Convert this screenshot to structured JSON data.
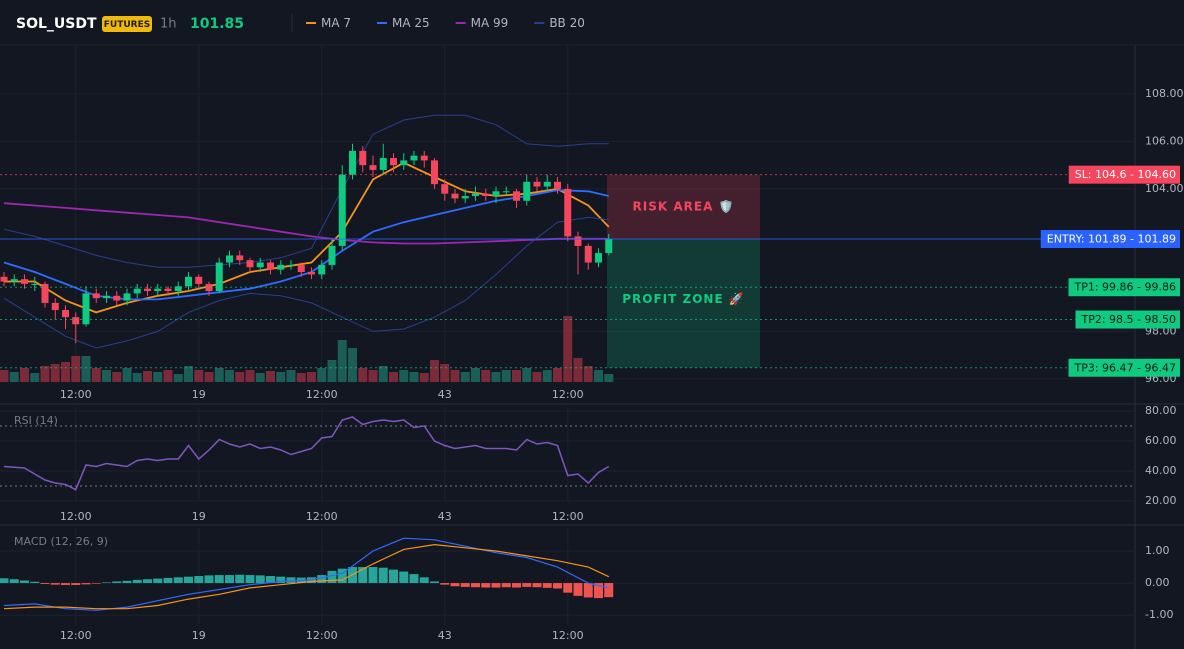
{
  "chart_data": [
    {
      "type": "candlestick",
      "title": "SOL_USDT",
      "badge": "FUTURES",
      "interval": "1h",
      "last_price": 101.85,
      "x": [
        0,
        1,
        2,
        3,
        4,
        5,
        6,
        7,
        8,
        9,
        10,
        11,
        12,
        13,
        14,
        15,
        16,
        17,
        18,
        19,
        20,
        21,
        22,
        23,
        24,
        25,
        26,
        27,
        28,
        29,
        30,
        31,
        32,
        33,
        34,
        35,
        36,
        37,
        38,
        39,
        40,
        41,
        42,
        43,
        44,
        45,
        46,
        47,
        48,
        49,
        50,
        51,
        52,
        53,
        54,
        55,
        56,
        57,
        58,
        59
      ],
      "open": [
        100.3,
        100.1,
        100.2,
        100.0,
        100.0,
        99.2,
        98.9,
        98.6,
        98.3,
        99.6,
        99.4,
        99.5,
        99.3,
        99.6,
        99.8,
        99.7,
        99.8,
        99.7,
        99.9,
        100.3,
        100.0,
        99.7,
        100.9,
        101.2,
        101.0,
        100.7,
        100.9,
        100.6,
        100.8,
        100.8,
        100.5,
        100.4,
        100.8,
        101.6,
        104.6,
        105.6,
        105.0,
        104.8,
        105.3,
        105.0,
        105.2,
        105.4,
        105.2,
        104.2,
        103.8,
        103.6,
        103.7,
        103.8,
        103.7,
        103.9,
        103.9,
        103.5,
        104.3,
        104.1,
        104.3,
        104.0,
        102.0,
        101.6,
        100.9,
        101.3
      ],
      "high": [
        100.5,
        100.4,
        100.4,
        100.3,
        100.1,
        99.4,
        99.1,
        98.8,
        99.9,
        99.8,
        99.7,
        99.7,
        99.8,
        100.0,
        100.0,
        100.0,
        99.9,
        100.1,
        100.5,
        100.4,
        100.1,
        101.1,
        101.4,
        101.4,
        101.1,
        101.1,
        101.0,
        101.0,
        101.0,
        100.9,
        100.7,
        101.0,
        101.9,
        105.0,
        105.9,
        105.8,
        105.4,
        105.9,
        105.5,
        105.5,
        105.6,
        105.6,
        105.3,
        104.4,
        104.0,
        104.0,
        104.1,
        104.0,
        104.1,
        104.1,
        104.0,
        104.6,
        104.5,
        104.6,
        104.5,
        104.2,
        102.2,
        101.7,
        101.5,
        102.1
      ],
      "low": [
        99.9,
        99.9,
        99.8,
        99.7,
        99.0,
        98.5,
        98.1,
        97.5,
        98.2,
        99.2,
        99.2,
        99.1,
        99.1,
        99.4,
        99.5,
        99.5,
        99.5,
        99.5,
        99.7,
        99.8,
        99.5,
        99.6,
        100.7,
        100.8,
        100.5,
        100.5,
        100.4,
        100.4,
        100.6,
        100.3,
        100.2,
        100.2,
        100.6,
        101.4,
        104.4,
        104.7,
        104.5,
        104.6,
        104.7,
        104.8,
        105.0,
        104.9,
        104.0,
        103.5,
        103.4,
        103.4,
        103.5,
        103.5,
        103.4,
        103.7,
        103.2,
        103.3,
        103.9,
        103.9,
        103.8,
        101.8,
        100.4,
        100.6,
        100.7,
        101.2
      ],
      "close": [
        100.1,
        100.2,
        100.0,
        100.0,
        99.2,
        98.9,
        98.6,
        98.3,
        99.6,
        99.4,
        99.5,
        99.3,
        99.6,
        99.8,
        99.7,
        99.8,
        99.7,
        99.9,
        100.3,
        100.0,
        99.7,
        100.9,
        101.2,
        101.0,
        100.7,
        100.9,
        100.6,
        100.8,
        100.8,
        100.5,
        100.4,
        100.8,
        101.6,
        104.6,
        105.6,
        105.0,
        104.8,
        105.3,
        105.0,
        105.2,
        105.4,
        105.2,
        104.2,
        103.8,
        103.6,
        103.7,
        103.8,
        103.7,
        103.9,
        103.9,
        103.5,
        104.3,
        104.1,
        104.3,
        104.0,
        102.0,
        101.6,
        100.9,
        101.3,
        101.9
      ],
      "volume": [
        12,
        10,
        14,
        9,
        16,
        18,
        20,
        26,
        26,
        14,
        12,
        10,
        14,
        9,
        11,
        10,
        12,
        8,
        16,
        12,
        10,
        14,
        12,
        10,
        12,
        9,
        11,
        10,
        12,
        9,
        10,
        14,
        22,
        42,
        34,
        14,
        12,
        16,
        10,
        12,
        10,
        9,
        22,
        18,
        12,
        10,
        14,
        12,
        10,
        12,
        12,
        14,
        10,
        12,
        14,
        66,
        24,
        16,
        12,
        8
      ],
      "up_color": "#0ecb81",
      "down_color": "#f6465d",
      "volume_up_color": "#1b5e57",
      "volume_down_color": "#7a2a38",
      "series": [
        {
          "name": "MA 7",
          "color": "#f7931a",
          "x": [
            0,
            3,
            6,
            9,
            12,
            15,
            18,
            21,
            24,
            27,
            30,
            33,
            36,
            39,
            42,
            45,
            48,
            51,
            54,
            57,
            59
          ],
          "values": [
            100.1,
            100.1,
            99.3,
            98.8,
            99.2,
            99.5,
            99.7,
            100.0,
            100.5,
            100.7,
            100.9,
            102.2,
            104.4,
            105.1,
            104.5,
            103.9,
            103.7,
            103.8,
            104.0,
            103.3,
            102.4
          ]
        },
        {
          "name": "MA 25",
          "color": "#2f6bff",
          "x": [
            0,
            3,
            6,
            9,
            12,
            15,
            18,
            21,
            24,
            27,
            30,
            33,
            36,
            39,
            42,
            45,
            48,
            51,
            54,
            57,
            59
          ],
          "values": [
            100.9,
            100.5,
            100.0,
            99.5,
            99.35,
            99.35,
            99.5,
            99.65,
            99.8,
            100.1,
            100.5,
            101.4,
            102.2,
            102.6,
            102.9,
            103.2,
            103.5,
            103.7,
            103.95,
            103.9,
            103.7
          ]
        },
        {
          "name": "MA 99",
          "color": "#9c27b0",
          "x": [
            0,
            3,
            6,
            9,
            12,
            15,
            18,
            21,
            24,
            27,
            30,
            33,
            36,
            39,
            42,
            45,
            48,
            51,
            54,
            57,
            59
          ],
          "values": [
            103.4,
            103.3,
            103.2,
            103.1,
            103.0,
            102.9,
            102.8,
            102.6,
            102.4,
            102.2,
            102.0,
            101.85,
            101.75,
            101.7,
            101.7,
            101.75,
            101.8,
            101.85,
            101.9,
            101.9,
            101.9
          ]
        },
        {
          "name": "BB 20",
          "color": "#2a3f8f",
          "x": [
            0,
            3,
            6,
            9,
            12,
            15,
            18,
            21,
            24,
            27,
            30,
            33,
            36,
            39,
            42,
            45,
            48,
            51,
            54,
            57,
            59
          ],
          "values": [
            102.3,
            102.0,
            101.6,
            101.2,
            100.9,
            100.7,
            100.7,
            100.8,
            100.9,
            101.1,
            101.5,
            104.0,
            106.3,
            106.9,
            107.1,
            107.1,
            106.7,
            105.9,
            105.8,
            105.9,
            105.9
          ],
          "lower": [
            99.4,
            98.6,
            97.8,
            97.3,
            97.6,
            98.0,
            98.8,
            99.3,
            99.6,
            99.5,
            99.2,
            98.6,
            98.0,
            98.1,
            98.6,
            99.3,
            100.4,
            101.6,
            102.6,
            102.8,
            102.7
          ]
        }
      ],
      "levels": [
        {
          "label": "SL: 104.6 - 104.60",
          "value": 104.6,
          "color": "#f6465d"
        },
        {
          "label": "ENTRY: 101.89 - 101.89",
          "value": 101.89,
          "color": "#2962ff"
        },
        {
          "label": "TP1: 99.86 - 99.86",
          "value": 99.86,
          "color": "#0ecb81"
        },
        {
          "label": "TP2: 98.5 - 98.50",
          "value": 98.5,
          "color": "#0ecb81"
        },
        {
          "label": "TP3: 96.47 - 96.47",
          "value": 96.47,
          "color": "#0ecb81"
        }
      ],
      "zones": [
        {
          "label": "RISK AREA 🛡️",
          "color": "#f6465d"
        },
        {
          "label": "PROFIT ZONE 🚀",
          "color": "#0ecb81"
        }
      ],
      "xlim": [
        -0.39,
        110.34
      ],
      "xticks": [
        {
          "value": 7,
          "label": "12:00"
        },
        19,
        {
          "value": 31,
          "label": "12:00"
        },
        43,
        {
          "value": 55,
          "label": "12:00"
        }
      ],
      "ylim": [
        95.87,
        110.06
      ],
      "yticks": [
        {
          "value": 96,
          "label": "96.00"
        },
        {
          "value": 98,
          "label": "98.00"
        },
        {
          "value": 104,
          "label": "104.00"
        },
        {
          "value": 106,
          "label": "106.00"
        },
        {
          "value": 108,
          "label": "108.00"
        }
      ],
      "grid": true
    },
    {
      "type": "line",
      "title": "RSI (14)",
      "color": "#7e57c2",
      "values": [
        43,
        42.5,
        42,
        38,
        34,
        32,
        31,
        27.5,
        44,
        43,
        45,
        44,
        43,
        47,
        48,
        47,
        48,
        48,
        57,
        48,
        54,
        61,
        58,
        56,
        58,
        55,
        56,
        54,
        51,
        53,
        55,
        62,
        63,
        74,
        76,
        71,
        73,
        74,
        73,
        74,
        69,
        70,
        60,
        57,
        55,
        56,
        57,
        55,
        55,
        55,
        54,
        61,
        58,
        59,
        57,
        37,
        38,
        32,
        39,
        43
      ],
      "levels": [
        70,
        30
      ],
      "ylim": [
        19.33,
        82.67
      ],
      "yticks": [
        {
          "value": 20,
          "label": "20.00"
        },
        {
          "value": 40,
          "label": "40.00"
        },
        {
          "value": 60,
          "label": "60.00"
        },
        {
          "value": 80,
          "label": "80.00"
        }
      ]
    },
    {
      "type": "macd",
      "title": "MACD (12, 26, 9)",
      "up_color": "#26a69a",
      "down_color": "#ef5350",
      "histogram": [
        0.15,
        0.12,
        0.08,
        0.04,
        -0.03,
        -0.05,
        -0.06,
        -0.06,
        -0.04,
        -0.02,
        0.02,
        0.05,
        0.07,
        0.1,
        0.12,
        0.14,
        0.16,
        0.18,
        0.2,
        0.22,
        0.24,
        0.25,
        0.25,
        0.26,
        0.25,
        0.24,
        0.22,
        0.2,
        0.18,
        0.17,
        0.18,
        0.25,
        0.38,
        0.45,
        0.5,
        0.5,
        0.5,
        0.48,
        0.42,
        0.36,
        0.28,
        0.18,
        0.05,
        -0.05,
        -0.1,
        -0.12,
        -0.13,
        -0.14,
        -0.14,
        -0.13,
        -0.14,
        -0.12,
        -0.13,
        -0.15,
        -0.17,
        -0.3,
        -0.4,
        -0.45,
        -0.47,
        -0.44
      ],
      "series": [
        {
          "color": "#2f6bff",
          "x": [
            0,
            3,
            6,
            9,
            12,
            15,
            18,
            21,
            24,
            27,
            30,
            33,
            36,
            39,
            42,
            45,
            48,
            51,
            54,
            57,
            59
          ],
          "values": [
            -0.7,
            -0.65,
            -0.8,
            -0.85,
            -0.75,
            -0.55,
            -0.35,
            -0.2,
            -0.05,
            0.05,
            0.1,
            0.3,
            1.0,
            1.4,
            1.35,
            1.15,
            0.95,
            0.8,
            0.5,
            0.0,
            -0.15
          ]
        },
        {
          "color": "#f7931a",
          "x": [
            0,
            3,
            6,
            9,
            12,
            15,
            18,
            21,
            24,
            27,
            30,
            33,
            36,
            39,
            42,
            45,
            48,
            51,
            54,
            57,
            59
          ],
          "values": [
            -0.8,
            -0.75,
            -0.75,
            -0.8,
            -0.8,
            -0.7,
            -0.5,
            -0.35,
            -0.15,
            -0.05,
            0.05,
            0.1,
            0.6,
            1.05,
            1.2,
            1.1,
            1.0,
            0.85,
            0.7,
            0.5,
            0.2
          ]
        }
      ],
      "ylim": [
        -1.31,
        1.72
      ],
      "yticks": [
        {
          "value": -1,
          "label": "-1.00"
        },
        {
          "value": 0,
          "label": "0.00"
        },
        {
          "value": 1,
          "label": "1.00"
        }
      ]
    }
  ]
}
